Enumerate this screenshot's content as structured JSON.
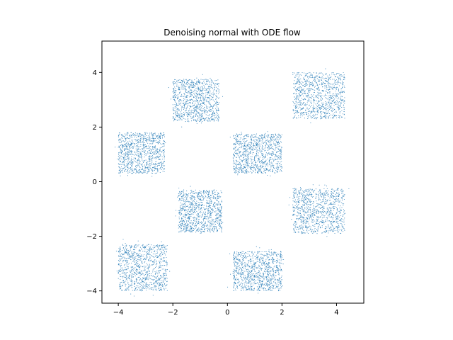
{
  "chart_data": {
    "type": "scatter",
    "title": "Denoising normal with ODE flow",
    "xlabel": "",
    "ylabel": "",
    "xlim": [
      -4.6,
      5.0
    ],
    "ylim": [
      -4.45,
      5.15
    ],
    "x_ticks": [
      -4,
      -2,
      0,
      2,
      4
    ],
    "y_ticks": [
      -4,
      -2,
      0,
      2,
      4
    ],
    "grid": false,
    "legend": "none",
    "point_color": "#1f77b4",
    "point_count_estimate": 8000,
    "clusters": [
      {
        "x_range": [
          -2.0,
          -0.3
        ],
        "y_range": [
          2.2,
          3.75
        ]
      },
      {
        "x_range": [
          2.4,
          4.3
        ],
        "y_range": [
          2.3,
          4.0
        ]
      },
      {
        "x_range": [
          -4.0,
          -2.3
        ],
        "y_range": [
          0.3,
          1.8
        ]
      },
      {
        "x_range": [
          0.2,
          2.0
        ],
        "y_range": [
          0.3,
          1.75
        ]
      },
      {
        "x_range": [
          -1.8,
          -0.2
        ],
        "y_range": [
          -1.85,
          -0.3
        ]
      },
      {
        "x_range": [
          2.4,
          4.3
        ],
        "y_range": [
          -1.9,
          -0.25
        ]
      },
      {
        "x_range": [
          -4.0,
          -2.2
        ],
        "y_range": [
          -4.0,
          -2.3
        ]
      },
      {
        "x_range": [
          0.2,
          2.0
        ],
        "y_range": [
          -4.0,
          -2.55
        ]
      }
    ]
  }
}
